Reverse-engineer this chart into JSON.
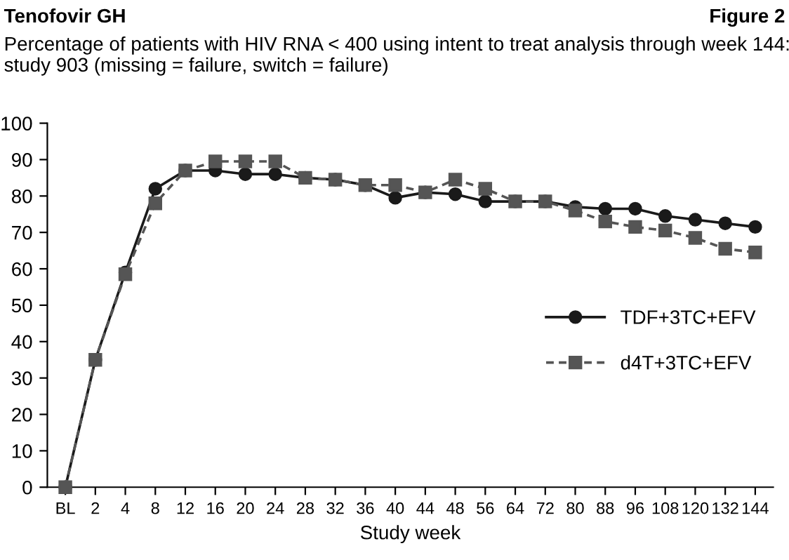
{
  "chart_data": {
    "type": "line",
    "title": "Tenofovir GH",
    "subtitle": "Percentage of patients with HIV RNA < 400 using intent to treat analysis through week 144:\nstudy 903 (missing = failure, switch = failure)",
    "annotations": [
      "Figure 2"
    ],
    "xlabel": "Study week",
    "categories": [
      "BL",
      "2",
      "4",
      "8",
      "12",
      "16",
      "20",
      "24",
      "28",
      "32",
      "36",
      "40",
      "44",
      "48",
      "56",
      "64",
      "72",
      "80",
      "88",
      "96",
      "108",
      "120",
      "132",
      "144"
    ],
    "series": [
      {
        "name": "TDF+3TC+EFV",
        "color": "#1a1a1a",
        "marker": "circle",
        "line_style": "solid",
        "values": [
          0,
          35,
          59,
          82,
          87,
          87,
          86,
          86,
          85,
          84.5,
          83,
          79.5,
          81,
          80.5,
          78.5,
          78.5,
          78.5,
          77,
          76.5,
          76.5,
          74.5,
          73.5,
          72.5,
          71.5
        ]
      },
      {
        "name": "d4T+3TC+EFV",
        "color": "#555555",
        "marker": "square",
        "line_style": "dashed",
        "values": [
          0,
          35,
          58.5,
          78,
          87,
          89.5,
          89.5,
          89.5,
          85,
          84.5,
          83,
          83,
          81,
          84.5,
          82,
          78.5,
          78.5,
          76,
          73,
          71.5,
          70.5,
          68.5,
          65.5,
          64.5
        ]
      }
    ],
    "ylim": [
      0,
      100
    ],
    "yticks": [
      0,
      10,
      20,
      30,
      40,
      50,
      60,
      70,
      80,
      90,
      100
    ],
    "grid": false,
    "legend": "right"
  }
}
